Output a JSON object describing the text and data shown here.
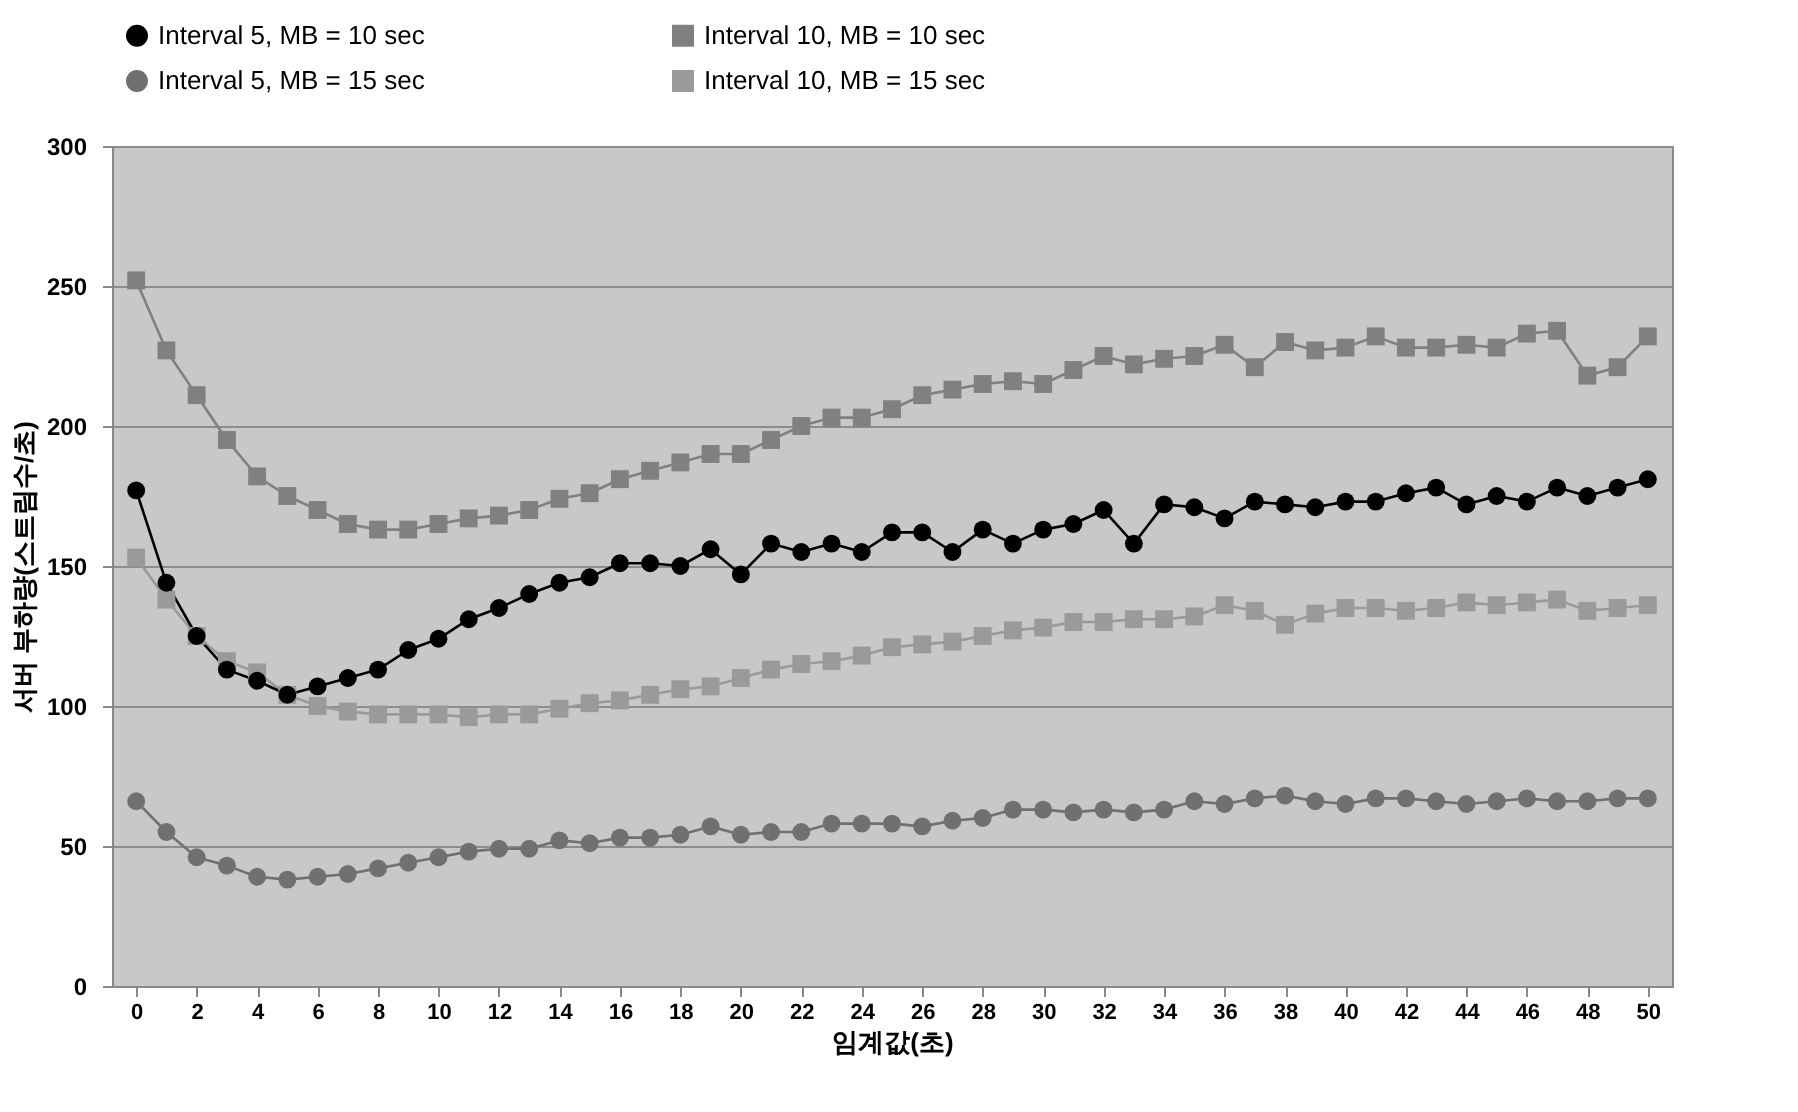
{
  "chart_data": {
    "type": "line",
    "xlabel": "임계값(초)",
    "ylabel": "서버 부하량(스트림수/초)",
    "x": [
      0,
      1,
      2,
      3,
      4,
      5,
      6,
      7,
      8,
      9,
      10,
      11,
      12,
      13,
      14,
      15,
      16,
      17,
      18,
      19,
      20,
      21,
      22,
      23,
      24,
      25,
      26,
      27,
      28,
      29,
      30,
      31,
      32,
      33,
      34,
      35,
      36,
      37,
      38,
      39,
      40,
      41,
      42,
      43,
      44,
      45,
      46,
      47,
      48,
      49,
      50
    ],
    "xlim": [
      -0.8,
      50.8
    ],
    "xticks": [
      0,
      2,
      4,
      6,
      8,
      10,
      12,
      14,
      16,
      18,
      20,
      22,
      24,
      26,
      28,
      30,
      32,
      34,
      36,
      38,
      40,
      42,
      44,
      46,
      48,
      50
    ],
    "ylim": [
      0,
      300
    ],
    "yticks": [
      0,
      50,
      100,
      150,
      200,
      250,
      300
    ],
    "grid": "y",
    "legend": "top",
    "line_style": "solid",
    "series": [
      {
        "name": "Interval 5, MB = 10 sec",
        "color": "#000000",
        "marker": "circle",
        "values": [
          177,
          144,
          125,
          113,
          109,
          104,
          107,
          110,
          113,
          120,
          124,
          131,
          135,
          140,
          144,
          146,
          151,
          151,
          150,
          156,
          147,
          158,
          155,
          158,
          155,
          162,
          162,
          155,
          163,
          158,
          163,
          165,
          170,
          158,
          172,
          171,
          167,
          173,
          172,
          171,
          173,
          173,
          176,
          178,
          172,
          175,
          173,
          178,
          175,
          178,
          181
        ]
      },
      {
        "name": "Interval 10, MB = 10 sec",
        "color": "#808080",
        "marker": "square",
        "values": [
          252,
          227,
          211,
          195,
          182,
          175,
          170,
          165,
          163,
          163,
          165,
          167,
          168,
          170,
          174,
          176,
          181,
          184,
          187,
          190,
          190,
          195,
          200,
          203,
          203,
          206,
          211,
          213,
          215,
          216,
          215,
          220,
          225,
          222,
          224,
          225,
          229,
          221,
          230,
          227,
          228,
          232,
          228,
          228,
          229,
          228,
          233,
          234,
          218,
          221,
          232
        ]
      },
      {
        "name": "Interval 5, MB = 15 sec",
        "color": "#707070",
        "marker": "circle",
        "values": [
          66,
          55,
          46,
          43,
          39,
          38,
          39,
          40,
          42,
          44,
          46,
          48,
          49,
          49,
          52,
          51,
          53,
          53,
          54,
          57,
          54,
          55,
          55,
          58,
          58,
          58,
          57,
          59,
          60,
          63,
          63,
          62,
          63,
          62,
          63,
          66,
          65,
          67,
          68,
          66,
          65,
          67,
          67,
          66,
          65,
          66,
          67,
          66,
          66,
          67,
          67
        ]
      },
      {
        "name": "Interval 10, MB = 15 sec",
        "color": "#9a9a9a",
        "marker": "square",
        "values": [
          153,
          138,
          125,
          116,
          112,
          104,
          100,
          98,
          97,
          97,
          97,
          96,
          97,
          97,
          99,
          101,
          102,
          104,
          106,
          107,
          110,
          113,
          115,
          116,
          118,
          121,
          122,
          123,
          125,
          127,
          128,
          130,
          130,
          131,
          131,
          132,
          136,
          134,
          129,
          133,
          135,
          135,
          134,
          135,
          137,
          136,
          137,
          138,
          134,
          135,
          136
        ]
      }
    ]
  }
}
